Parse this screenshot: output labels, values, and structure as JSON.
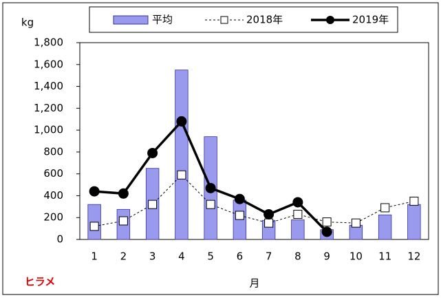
{
  "chart_data": {
    "type": "bar-line",
    "y_label": "kg",
    "x_label": "月",
    "corner_label": "ヒラメ",
    "categories": [
      "1",
      "2",
      "3",
      "4",
      "5",
      "6",
      "7",
      "8",
      "9",
      "10",
      "11",
      "12"
    ],
    "series": [
      {
        "name": "平均",
        "kind": "bar",
        "color": "#9999ee",
        "values": [
          320,
          275,
          650,
          1550,
          940,
          360,
          175,
          180,
          90,
          130,
          225,
          320
        ]
      },
      {
        "name": "2018年",
        "kind": "line-dashed",
        "color": "#000000",
        "values": [
          120,
          170,
          320,
          590,
          320,
          220,
          150,
          230,
          160,
          150,
          290,
          350
        ]
      },
      {
        "name": "2019年",
        "kind": "line-bold",
        "color": "#000000",
        "values": [
          440,
          420,
          790,
          1080,
          470,
          370,
          230,
          340,
          70,
          null,
          null,
          null
        ]
      }
    ],
    "ylim": [
      0,
      1800
    ],
    "yticks": [
      0,
      200,
      400,
      600,
      800,
      {
        "value": 1000,
        "label": "1,000"
      },
      {
        "value": 1200,
        "label": "1,200"
      },
      {
        "value": 1400,
        "label": "1,400"
      },
      {
        "value": 1600,
        "label": "1,600"
      },
      {
        "value": 1800,
        "label": "1,800"
      }
    ],
    "grid": false
  }
}
